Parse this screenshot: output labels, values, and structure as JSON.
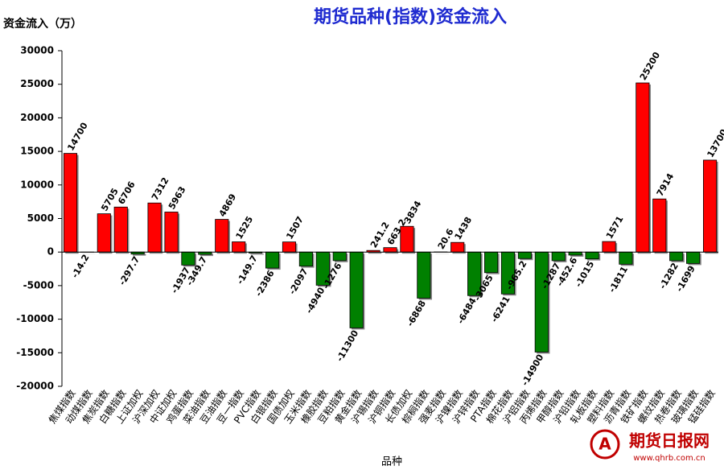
{
  "chart_data": {
    "type": "bar",
    "title": "期货品种(指数)资金流入",
    "y_axis_label": "资金流入（万）",
    "x_axis_label": "品种",
    "watermark": "期货日报网",
    "watermark_url": "www.qhrb.com.cn",
    "categories": [
      "焦煤指数",
      "动煤指数",
      "焦炭指数",
      "白糖指数",
      "上证加权",
      "沪深加权",
      "中证加权",
      "鸡蛋指数",
      "菜油指数",
      "豆油指数",
      "豆一指数",
      "PVC指数",
      "白银指数",
      "国债加权",
      "玉米指数",
      "橡胶指数",
      "豆粕指数",
      "黄金指数",
      "沪锡指数",
      "沪铜指数",
      "长债加权",
      "棕榈指数",
      "强麦指数",
      "沪镍指数",
      "沪锌指数",
      "PTA指数",
      "棉花指数",
      "沪铝指数",
      "丙烯指数",
      "甲醇指数",
      "沪铅指数",
      "轧板指数",
      "塑料指数",
      "沥青指数",
      "铁矿指数",
      "螺纹指数",
      "热卷指数",
      "玻璃指数",
      "锰硅指数"
    ],
    "values": [
      14700,
      -14.2,
      5705,
      6706,
      -297.7,
      7312,
      5963,
      -1937,
      -349.7,
      4869,
      1525,
      -149.7,
      -2386,
      1507,
      -2097,
      -4940,
      -1276,
      -11300,
      241.2,
      663.2,
      3834,
      -6868,
      20.6,
      1438,
      -6484,
      -3065,
      -6241,
      -965.2,
      -14900,
      -1287,
      -452.6,
      -1015,
      1571,
      -1811,
      25200,
      7914,
      -1282,
      -1699,
      13700
    ],
    "positive_color": "#ff0000",
    "negative_color": "#008000",
    "ylim": [
      -20000,
      30000
    ],
    "yticks": [
      -20000,
      -15000,
      -10000,
      -5000,
      0,
      5000,
      10000,
      15000,
      20000,
      25000,
      30000
    ],
    "grid": false
  }
}
